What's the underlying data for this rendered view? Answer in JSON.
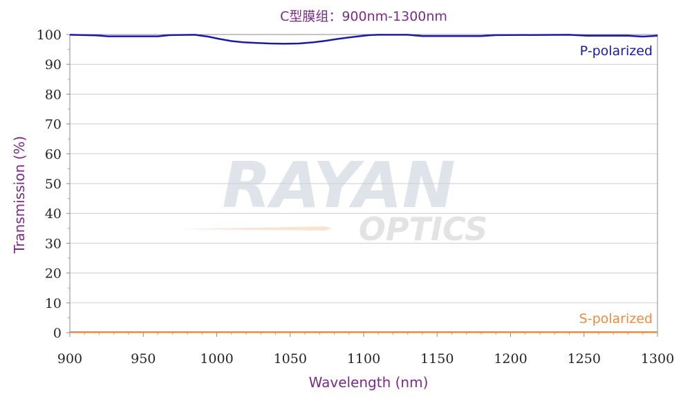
{
  "chart_data": {
    "type": "line",
    "title": "C型膜组：900nm-1300nm",
    "xlabel": "Wavelength (nm)",
    "ylabel": "Transmission (%)",
    "xlim": [
      900,
      1300
    ],
    "ylim": [
      0,
      100
    ],
    "xticks": [
      900,
      950,
      1000,
      1050,
      1100,
      1150,
      1200,
      1250,
      1300
    ],
    "yticks": [
      0,
      10,
      20,
      30,
      40,
      50,
      60,
      70,
      80,
      90,
      100
    ],
    "grid": "horizontal",
    "watermark": {
      "line1": "RAYAN",
      "line2": "OPTICS"
    },
    "colors": {
      "p": "#1a1aa8",
      "s": "#f08a3c",
      "text": "#7b2a8a",
      "grid": "#cccccc"
    },
    "series": [
      {
        "name": "P-polarized",
        "label_position": "top-right",
        "x": [
          900,
          918,
          926,
          960,
          968,
          985,
          994,
          1002,
          1010,
          1018,
          1026,
          1036,
          1046,
          1056,
          1066,
          1074,
          1082,
          1090,
          1098,
          1104,
          1110,
          1130,
          1140,
          1180,
          1190,
          1240,
          1252,
          1280,
          1290,
          1300
        ],
        "values": [
          99.9,
          99.7,
          99.4,
          99.4,
          99.8,
          99.9,
          99.3,
          98.5,
          97.8,
          97.4,
          97.2,
          97.0,
          96.9,
          97.0,
          97.4,
          97.9,
          98.5,
          99.0,
          99.5,
          99.8,
          99.9,
          99.9,
          99.5,
          99.5,
          99.8,
          99.9,
          99.6,
          99.6,
          99.3,
          99.6
        ]
      },
      {
        "name": "S-polarized",
        "label_position": "bottom-right",
        "x": [
          900,
          1300
        ],
        "values": [
          0.2,
          0.2
        ]
      }
    ]
  }
}
